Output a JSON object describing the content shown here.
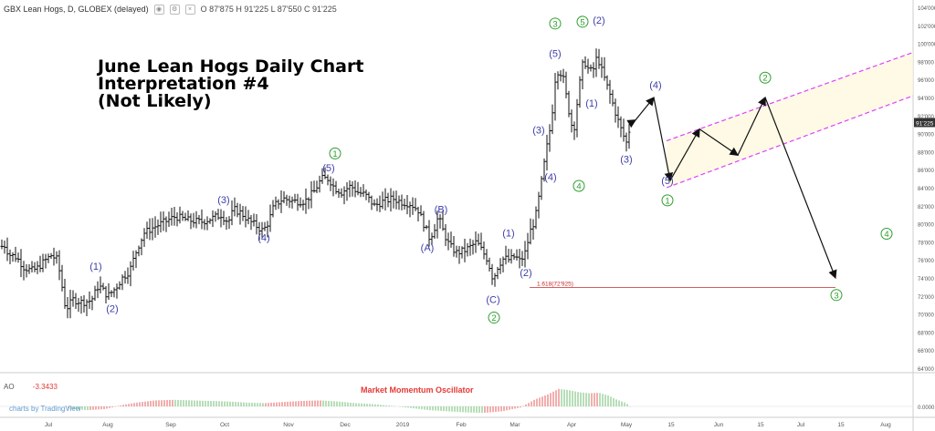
{
  "header": {
    "symbol": "GBX Lean Hogs, D, GLOBEX (delayed)",
    "ohlc": "O 87'875  H 91'225  L 87'550  C 91'225",
    "icons": [
      "eye-icon",
      "settings-icon",
      "close-icon"
    ]
  },
  "title_lines": "June Lean Hogs Daily Chart\nInterpretation #4\n(Not Likely)",
  "last_price_label": "91'225",
  "fib_label": "1.618(72'925)",
  "oscillator": {
    "name": "AO",
    "value": "-3.3433",
    "title": "Market Momentum Oscillator",
    "zero_label": "0.0000"
  },
  "watermark": "charts by TradingView",
  "colors": {
    "up_osc": "#ef9a9a",
    "down_osc": "#a5d6a7",
    "primary_wave": "#2e9e2e",
    "minor_wave": "#3f3fa8",
    "channel": "#e040fb",
    "fib": "#c62828"
  },
  "chart_data": {
    "type": "bar",
    "xlabel": "",
    "ylabel": "",
    "ylim": [
      64,
      104
    ],
    "y_ticks": [
      "104'000",
      "102'000",
      "100'000",
      "98'000",
      "96'000",
      "94'000",
      "92'000",
      "90'000",
      "88'000",
      "86'000",
      "84'000",
      "82'000",
      "80'000",
      "78'000",
      "76'000",
      "74'000",
      "72'000",
      "70'000",
      "68'000",
      "66'000",
      "64'000"
    ],
    "x_ticks": [
      "Jul",
      "Aug",
      "Sep",
      "Oct",
      "Nov",
      "Dec",
      "2019",
      "Feb",
      "Mar",
      "Apr",
      "May",
      "15",
      "Jun",
      "15",
      "Jul",
      "15",
      "Aug"
    ],
    "price_path": [
      [
        0,
        77.2
      ],
      [
        4,
        77.8
      ],
      [
        10,
        76.6
      ],
      [
        18,
        76.3
      ],
      [
        26,
        75.2
      ],
      [
        34,
        74.8
      ],
      [
        40,
        75.0
      ],
      [
        48,
        75.8
      ],
      [
        56,
        76.5
      ],
      [
        63,
        76.0
      ],
      [
        68,
        73.0
      ],
      [
        72,
        70.5
      ],
      [
        80,
        71.6
      ],
      [
        90,
        71.3
      ],
      [
        100,
        71.5
      ],
      [
        108,
        73.2
      ],
      [
        118,
        72.0
      ],
      [
        126,
        72.8
      ],
      [
        134,
        74.0
      ],
      [
        142,
        74.8
      ],
      [
        150,
        77.2
      ],
      [
        158,
        79.0
      ],
      [
        168,
        79.6
      ],
      [
        180,
        80.2
      ],
      [
        192,
        80.8
      ],
      [
        206,
        80.4
      ],
      [
        220,
        80.2
      ],
      [
        232,
        80.6
      ],
      [
        242,
        81.0
      ],
      [
        250,
        80.2
      ],
      [
        256,
        81.6
      ],
      [
        264,
        81.2
      ],
      [
        272,
        80.4
      ],
      [
        280,
        79.8
      ],
      [
        288,
        79.2
      ],
      [
        294,
        80.2
      ],
      [
        300,
        82.0
      ],
      [
        310,
        82.8
      ],
      [
        322,
        82.5
      ],
      [
        334,
        82.5
      ],
      [
        344,
        83.6
      ],
      [
        352,
        85.0
      ],
      [
        360,
        85.0
      ],
      [
        366,
        84.0
      ],
      [
        374,
        83.5
      ],
      [
        384,
        84.2
      ],
      [
        392,
        83.5
      ],
      [
        400,
        83.2
      ],
      [
        410,
        82.0
      ],
      [
        420,
        82.5
      ],
      [
        430,
        82.8
      ],
      [
        440,
        82.4
      ],
      [
        450,
        82.2
      ],
      [
        458,
        81.5
      ],
      [
        464,
        80.0
      ],
      [
        470,
        78.5
      ],
      [
        474,
        79.0
      ],
      [
        480,
        80.8
      ],
      [
        486,
        79.0
      ],
      [
        492,
        77.6
      ],
      [
        500,
        76.8
      ],
      [
        508,
        77.0
      ],
      [
        516,
        77.5
      ],
      [
        522,
        78.0
      ],
      [
        528,
        77.0
      ],
      [
        534,
        76.0
      ],
      [
        540,
        73.8
      ],
      [
        546,
        75.5
      ],
      [
        552,
        76.2
      ],
      [
        558,
        76.0
      ],
      [
        564,
        76.4
      ],
      [
        570,
        75.8
      ],
      [
        576,
        77.0
      ],
      [
        580,
        79.0
      ],
      [
        586,
        80.5
      ],
      [
        592,
        84.0
      ],
      [
        598,
        88.0
      ],
      [
        604,
        91.5
      ],
      [
        608,
        96.0
      ],
      [
        612,
        97.2
      ],
      [
        617,
        96.0
      ],
      [
        622,
        93.0
      ],
      [
        628,
        90.0
      ],
      [
        634,
        95.0
      ],
      [
        639,
        98.2
      ],
      [
        644,
        97.2
      ],
      [
        649,
        96.8
      ],
      [
        654,
        98.6
      ],
      [
        659,
        97.0
      ],
      [
        664,
        95.5
      ],
      [
        669,
        94.0
      ],
      [
        675,
        92.0
      ],
      [
        681,
        90.2
      ],
      [
        686,
        89.0
      ],
      [
        691,
        91.2
      ]
    ],
    "series": [
      {
        "name": "(1)",
        "values": []
      }
    ],
    "projection_path": [
      [
        691,
        91.2
      ],
      [
        696,
        91.5
      ],
      [
        716,
        94.0
      ],
      [
        734,
        84.8
      ],
      [
        766,
        90.5
      ],
      [
        808,
        87.6
      ],
      [
        838,
        94.0
      ],
      [
        915,
        74.0
      ]
    ],
    "channel": {
      "upper": [
        [
          730,
          89.2
        ],
        [
          1000,
          99.0
        ]
      ],
      "lower": [
        [
          730,
          84.0
        ],
        [
          1000,
          94.2
        ]
      ]
    },
    "fib_level": 72.925,
    "primary_labels": [
      {
        "text": "1",
        "t": 367,
        "v": 87.8
      },
      {
        "text": "2",
        "t": 541,
        "v": 69.6
      },
      {
        "text": "3",
        "t": 608,
        "v": 102.2
      },
      {
        "text": "5",
        "t": 638,
        "v": 102.4
      },
      {
        "text": "4",
        "t": 634,
        "v": 84.2
      },
      {
        "text": "1",
        "t": 731,
        "v": 82.6
      },
      {
        "text": "2",
        "t": 838,
        "v": 96.2
      },
      {
        "text": "3",
        "t": 916,
        "v": 72.1
      },
      {
        "text": "4",
        "t": 971,
        "v": 78.9
      }
    ],
    "minor_labels": [
      {
        "text": "(1)",
        "t": 105,
        "v": 74.9
      },
      {
        "text": "(2)",
        "t": 123,
        "v": 70.2
      },
      {
        "text": "(3)",
        "t": 245,
        "v": 82.3
      },
      {
        "text": "(4)",
        "t": 289,
        "v": 78.1
      },
      {
        "text": "(5)",
        "t": 360,
        "v": 85.8
      },
      {
        "text": "(A)",
        "t": 468,
        "v": 77.0
      },
      {
        "text": "(B)",
        "t": 483,
        "v": 81.2
      },
      {
        "text": "(C)",
        "t": 540,
        "v": 71.2
      },
      {
        "text": "(1)",
        "t": 557,
        "v": 78.6
      },
      {
        "text": "(2)",
        "t": 576,
        "v": 74.2
      },
      {
        "text": "(3)",
        "t": 590,
        "v": 90.0
      },
      {
        "text": "(4)",
        "t": 603,
        "v": 84.8
      },
      {
        "text": "(5)",
        "t": 608,
        "v": 98.5
      },
      {
        "text": "(1)",
        "t": 648,
        "v": 93.0
      },
      {
        "text": "(2)",
        "t": 656,
        "v": 102.2
      },
      {
        "text": "(3)",
        "t": 686,
        "v": 86.8
      },
      {
        "text": "(4)",
        "t": 718,
        "v": 95.0
      },
      {
        "text": "(5)",
        "t": 731,
        "v": 84.4
      }
    ],
    "oscillator_values": [
      [
        75,
        -0.2
      ],
      [
        95,
        -0.35
      ],
      [
        115,
        -0.25
      ],
      [
        135,
        0.15
      ],
      [
        150,
        0.35
      ],
      [
        170,
        0.55
      ],
      [
        190,
        0.6
      ],
      [
        210,
        0.55
      ],
      [
        230,
        0.5
      ],
      [
        250,
        0.45
      ],
      [
        270,
        0.35
      ],
      [
        290,
        0.3
      ],
      [
        310,
        0.4
      ],
      [
        330,
        0.5
      ],
      [
        350,
        0.55
      ],
      [
        370,
        0.45
      ],
      [
        390,
        0.3
      ],
      [
        410,
        0.2
      ],
      [
        430,
        0.05
      ],
      [
        450,
        -0.15
      ],
      [
        470,
        -0.35
      ],
      [
        490,
        -0.45
      ],
      [
        510,
        -0.55
      ],
      [
        530,
        -0.6
      ],
      [
        550,
        -0.45
      ],
      [
        570,
        -0.1
      ],
      [
        585,
        0.6
      ],
      [
        600,
        1.1
      ],
      [
        612,
        1.6
      ],
      [
        622,
        1.5
      ],
      [
        634,
        1.3
      ],
      [
        646,
        1.2
      ],
      [
        656,
        1.25
      ],
      [
        666,
        1.0
      ],
      [
        676,
        0.6
      ],
      [
        686,
        0.3
      ],
      [
        692,
        -0.2
      ]
    ]
  }
}
